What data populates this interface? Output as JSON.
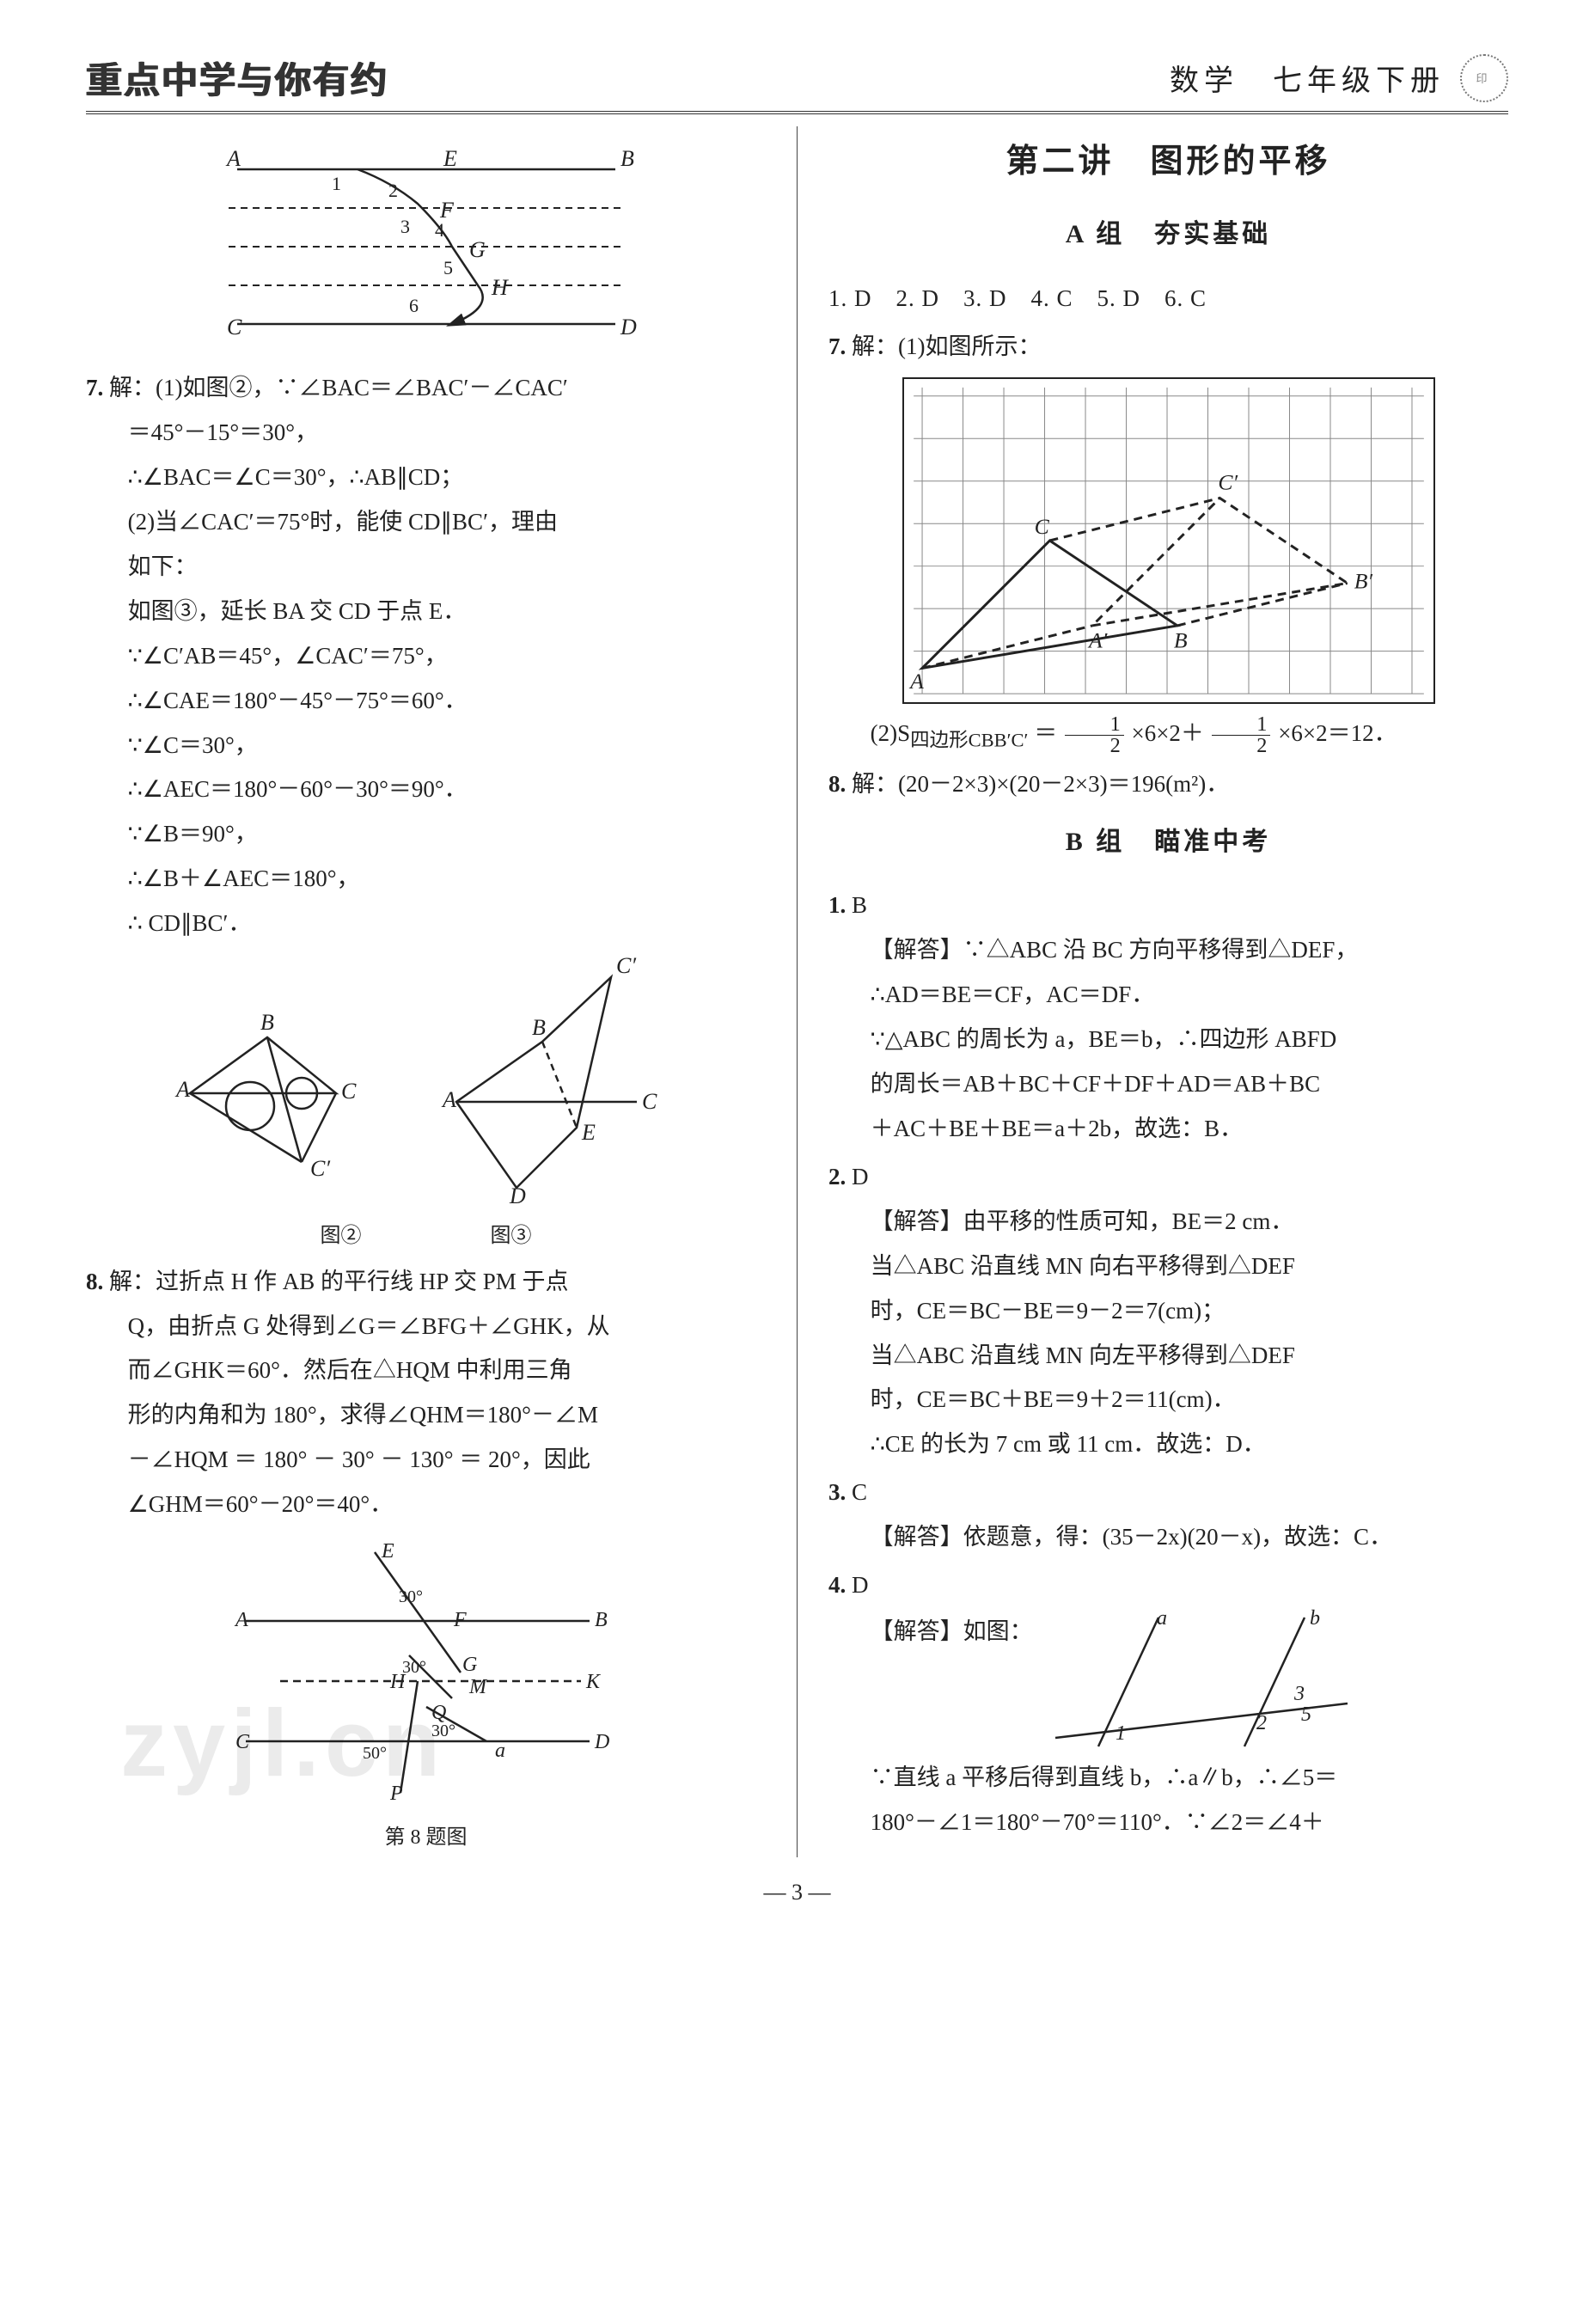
{
  "header": {
    "brand": "重点中学与你有约",
    "subject": "数学　七年级下册"
  },
  "left": {
    "fig_top": {
      "labels": [
        "A",
        "B",
        "C",
        "D",
        "E",
        "F",
        "G",
        "H"
      ],
      "nums": [
        "1",
        "2",
        "3",
        "4",
        "5",
        "6"
      ]
    },
    "q7": {
      "num": "7.",
      "lines": [
        "解：(1)如图②，∵∠BAC＝∠BAC′－∠CAC′",
        "＝45°－15°＝30°，",
        "∴∠BAC＝∠C＝30°，∴AB∥CD；",
        "(2)当∠CAC′＝75°时，能使 CD∥BC′，理由",
        "如下：",
        "如图③，延长 BA 交 CD 于点 E．",
        "∵∠C′AB＝45°，∠CAC′＝75°，",
        "∴∠CAE＝180°－45°－75°＝60°．",
        "∵∠C＝30°，",
        "∴∠AEC＝180°－60°－30°＝90°．",
        "∵∠B＝90°，",
        "∴∠B＋∠AEC＝180°，",
        "∴ CD∥BC′．"
      ]
    },
    "fig_mid": {
      "cap2": "图②",
      "cap3": "图③",
      "labels": [
        "A",
        "B",
        "C",
        "C′",
        "D",
        "E"
      ]
    },
    "q8": {
      "num": "8.",
      "lines": [
        "解：过折点 H 作 AB 的平行线 HP 交 PM 于点",
        "Q，由折点 G 处得到∠G＝∠BFG＋∠GHK，从",
        "而∠GHK＝60°．然后在△HQM 中利用三角",
        "形的内角和为 180°，求得∠QHM＝180°－∠M",
        "－∠HQM ＝ 180° － 30° － 130° ＝ 20°，因此",
        "∠GHM＝60°－20°＝40°．"
      ]
    },
    "fig_bot": {
      "labels": [
        "A",
        "B",
        "C",
        "D",
        "E",
        "F",
        "G",
        "H",
        "K",
        "M",
        "Q",
        "P",
        "a"
      ],
      "angles": [
        "30°",
        "30°",
        "30°",
        "50°"
      ],
      "caption": "第 8 题图"
    },
    "watermark": "zyjl.cn"
  },
  "right": {
    "lesson_title": "第二讲　图形的平移",
    "groupA_title": "A 组　夯实基础",
    "groupA_answers": "1. D　2. D　3. D　4. C　5. D　6. C",
    "q7": {
      "num": "7.",
      "line1": "解：(1)如图所示：",
      "grid": {
        "cols": 12,
        "rows": 7,
        "labels": [
          "A",
          "B",
          "C",
          "A′",
          "B′",
          "C′"
        ],
        "points": {
          "A": [
            0,
            6
          ],
          "B": [
            6,
            5
          ],
          "C": [
            3,
            3
          ],
          "Ap": [
            4,
            5
          ],
          "Bp": [
            10,
            4
          ],
          "Cp": [
            7,
            2
          ]
        }
      },
      "line2_prefix": "(2)S",
      "line2_sub": "四边形CBB′C′",
      "line2_rest_a": "＝",
      "frac": {
        "n": "1",
        "d": "2"
      },
      "line2_rest_b": "×6×2＋",
      "line2_rest_c": "×6×2＝12．"
    },
    "q8": {
      "num": "8.",
      "text": "解：(20－2×3)×(20－2×3)＝196(m²)．"
    },
    "groupB_title": "B 组　瞄准中考",
    "b1": {
      "num": "1.",
      "ans": "B",
      "lines": [
        "【解答】∵△ABC 沿 BC 方向平移得到△DEF，",
        "∴AD＝BE＝CF，AC＝DF．",
        "∵△ABC 的周长为 a，BE＝b，∴四边形 ABFD",
        "的周长＝AB＋BC＋CF＋DF＋AD＝AB＋BC",
        "＋AC＋BE＋BE＝a＋2b，故选：B．"
      ]
    },
    "b2": {
      "num": "2.",
      "ans": "D",
      "lines": [
        "【解答】由平移的性质可知，BE＝2 cm．",
        "当△ABC 沿直线 MN 向右平移得到△DEF",
        "时，CE＝BC－BE＝9－2＝7(cm)；",
        "当△ABC 沿直线 MN 向左平移得到△DEF",
        "时，CE＝BC＋BE＝9＋2＝11(cm)．",
        "∴CE 的长为 7 cm 或 11 cm．故选：D．"
      ]
    },
    "b3": {
      "num": "3.",
      "ans": "C",
      "lines": [
        "【解答】依题意，得：(35－2x)(20－x)，故选：C．"
      ]
    },
    "b4": {
      "num": "4.",
      "ans": "D",
      "intro": "【解答】如图：",
      "fig": {
        "labels": [
          "a",
          "b",
          "1",
          "2",
          "3",
          "5"
        ]
      },
      "lines": [
        "∵直线 a 平移后得到直线 b，∴a∥b，∴∠5＝",
        "180°－∠1＝180°－70°＝110°．∵∠2＝∠4＋"
      ]
    }
  },
  "page_number": "— 3 —",
  "colors": {
    "text": "#222",
    "rule": "#333",
    "grid": "#444",
    "wm": "rgba(0,0,0,0.08)"
  }
}
